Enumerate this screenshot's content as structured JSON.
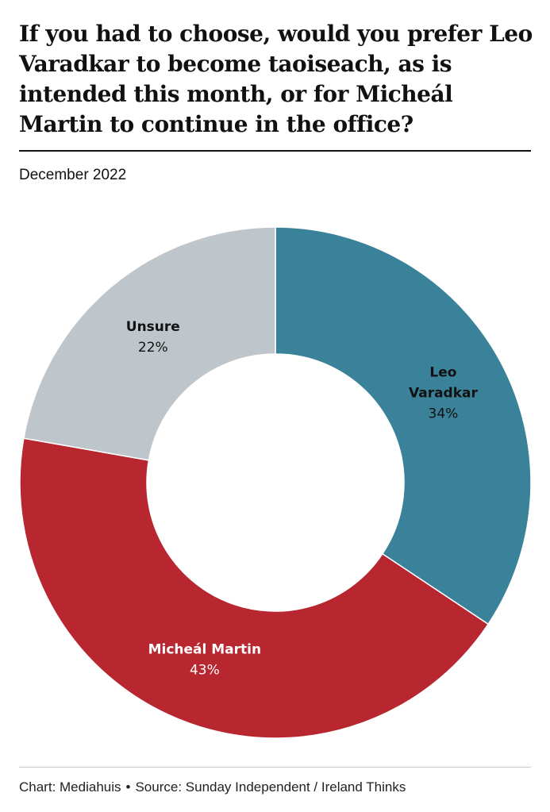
{
  "chart_data": {
    "type": "pie",
    "variant": "donut",
    "title": "If you had to choose, would you prefer Leo Varadkar to become taoiseach, as is intended this month, or for Micheál Martin to continue in the office?",
    "subtitle": "December 2022",
    "slices": [
      {
        "label_lines": [
          "Leo",
          "Varadkar"
        ],
        "label": "Leo Varadkar",
        "value": 34,
        "value_label": "34%",
        "color": "#3a8299",
        "text_color": "#111111"
      },
      {
        "label_lines": [
          "Micheál Martin"
        ],
        "label": "Micheál Martin",
        "value": 43,
        "value_label": "43%",
        "color": "#b8262f",
        "text_color": "#ffffff"
      },
      {
        "label_lines": [
          "Unsure"
        ],
        "label": "Unsure",
        "value": 22,
        "value_label": "22%",
        "color": "#bfc6cb",
        "text_color": "#111111"
      }
    ],
    "start_angle": "12 o'clock",
    "direction": "clockwise"
  },
  "footer": {
    "credit": "Chart: Mediahuis",
    "separator": "•",
    "source": "Source: Sunday Independent / Ireland Thinks"
  }
}
